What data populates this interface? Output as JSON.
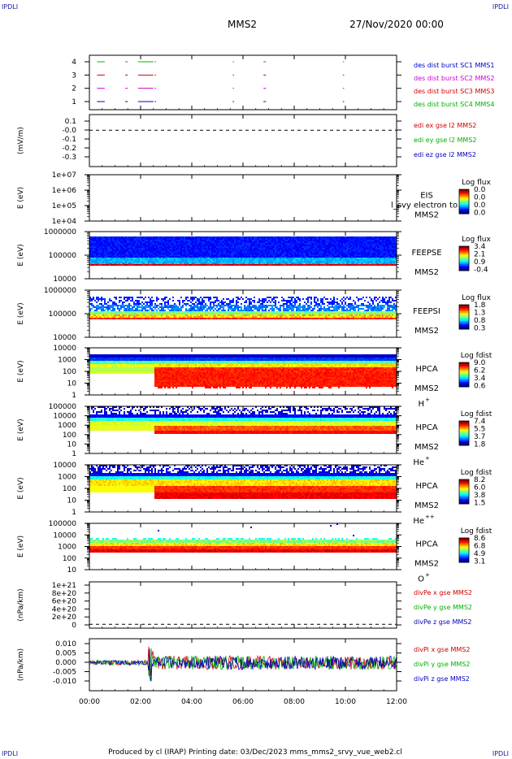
{
  "header": {
    "corner_tl": "IPDLI",
    "corner_tr": "IPDLI",
    "corner_bl": "IPDLI",
    "corner_br": "IPDLI",
    "spacecraft": "MMS2",
    "date": "27/Nov/2020 00:00"
  },
  "footer": "Produced by cl (IRAP)   Printing date: 03/Dec/2023   mms_mms2_srvy_vue_web2.cl",
  "chart_data": {
    "type": "multi-panel time-series / spectrogram",
    "x_ticks": [
      "00:00",
      "02:00",
      "04:00",
      "06:00",
      "08:00",
      "10:00",
      "12:00"
    ],
    "x_range_hours": [
      0,
      12
    ],
    "panels": [
      {
        "id": "burst",
        "kind": "segments",
        "ylabel": "",
        "yticks": [
          "4",
          "3",
          "2",
          "1"
        ],
        "legend": [
          {
            "text": "des dist burst SC1 MMS1",
            "color": "#0000c0"
          },
          {
            "text": "des dist burst SC2 MMS2",
            "color": "#d000d0"
          },
          {
            "text": "des dist burst SC3 MMS3",
            "color": "#d00000"
          },
          {
            "text": "des dist burst SC4 MMS4",
            "color": "#00b000"
          }
        ],
        "rows": [
          {
            "level": 4,
            "color": "#00b000",
            "segments": [
              [
                0.3,
                0.6
              ],
              [
                1.4,
                1.5
              ],
              [
                1.9,
                2.5
              ],
              [
                2.55,
                2.6
              ],
              [
                5.6,
                5.65
              ],
              [
                6.8,
                6.9
              ],
              [
                9.9,
                9.95
              ]
            ]
          },
          {
            "level": 3,
            "color": "#d00000",
            "segments": [
              [
                0.3,
                0.6
              ],
              [
                1.4,
                1.5
              ],
              [
                1.9,
                2.5
              ],
              [
                2.55,
                2.6
              ],
              [
                5.6,
                5.65
              ],
              [
                6.8,
                6.9
              ],
              [
                9.9,
                9.95
              ]
            ]
          },
          {
            "level": 2,
            "color": "#d000d0",
            "segments": [
              [
                0.3,
                0.6
              ],
              [
                1.4,
                1.5
              ],
              [
                1.9,
                2.5
              ],
              [
                2.55,
                2.6
              ],
              [
                5.6,
                5.65
              ],
              [
                6.8,
                6.9
              ],
              [
                9.9,
                9.95
              ]
            ]
          },
          {
            "level": 1,
            "color": "#0000c0",
            "segments": [
              [
                0.3,
                0.6
              ],
              [
                1.4,
                1.5
              ],
              [
                1.9,
                2.5
              ],
              [
                2.55,
                2.6
              ],
              [
                5.6,
                5.65
              ],
              [
                6.8,
                6.9
              ],
              [
                9.9,
                9.95
              ]
            ]
          }
        ]
      },
      {
        "id": "edi",
        "kind": "empty-line",
        "ylabel": "(mV/m)",
        "yticks": [
          "0.1",
          "-0.0",
          "-0.1",
          "-0.2",
          "-0.3"
        ],
        "zero_value": 0.0,
        "yrange": [
          -0.35,
          0.15
        ],
        "legend": [
          {
            "text": "edi ex gse l2 MMS2",
            "color": "#d00000"
          },
          {
            "text": "edi ey gse l2 MMS2",
            "color": "#00b000"
          },
          {
            "text": "edi ez gse l2 MMS2",
            "color": "#0000c0"
          }
        ]
      },
      {
        "id": "eis",
        "kind": "empty-spectrogram",
        "ylabel": "E (eV)",
        "yticks": [
          "1e+07",
          "1e+06",
          "1e+05",
          "1e+04"
        ],
        "instrument": "EIS",
        "spacecraft": "MMS2",
        "overlay_text": "l_svy electron to",
        "cbar_title": "Log flux",
        "cbar_ticks": [
          "0.0",
          "0.0",
          "0.0",
          "0.0"
        ]
      },
      {
        "id": "feepse",
        "kind": "spectrogram",
        "pattern": "feeps_e",
        "ylabel": "E (eV)",
        "yticks": [
          "1000000",
          "100000",
          "10000"
        ],
        "instrument": "FEEPSE",
        "spacecraft": "MMS2",
        "cbar_title": "Log flux",
        "cbar_ticks": [
          "3.4",
          "2.1",
          "0.9",
          "-0.4"
        ]
      },
      {
        "id": "feepsi",
        "kind": "spectrogram",
        "pattern": "feeps_i",
        "ylabel": "E (eV)",
        "yticks": [
          "1000000",
          "100000",
          "10000"
        ],
        "instrument": "FEEPSI",
        "spacecraft": "MMS2",
        "cbar_title": "Log flux",
        "cbar_ticks": [
          "1.8",
          "1.3",
          "0.8",
          "0.3"
        ]
      },
      {
        "id": "hpca_h",
        "kind": "spectrogram",
        "pattern": "hpca_h",
        "ylabel": "E (eV)",
        "yticks": [
          "10000",
          "1000",
          "100",
          "10",
          "1"
        ],
        "instrument": "HPCA",
        "spacecraft": "MMS2",
        "species": "H",
        "charge": "+",
        "cbar_title": "Log fdist",
        "cbar_ticks": [
          "9.0",
          "6.2",
          "3.4",
          "0.6"
        ]
      },
      {
        "id": "hpca_he1",
        "kind": "spectrogram",
        "pattern": "hpca_he1",
        "ylabel": "E (eV)",
        "yticks": [
          "100000",
          "10000",
          "1000",
          "100",
          "10",
          "1"
        ],
        "instrument": "HPCA",
        "spacecraft": "MMS2",
        "species": "He",
        "charge": "+",
        "cbar_title": "Log fdist",
        "cbar_ticks": [
          "7.4",
          "5.5",
          "3.7",
          "1.8"
        ]
      },
      {
        "id": "hpca_he2",
        "kind": "spectrogram",
        "pattern": "hpca_he2",
        "ylabel": "E (eV)",
        "yticks": [
          "10000",
          "1000",
          "100",
          "10",
          "1"
        ],
        "instrument": "HPCA",
        "spacecraft": "MMS2",
        "species": "He",
        "charge": "++",
        "cbar_title": "Log fdist",
        "cbar_ticks": [
          "8.2",
          "6.0",
          "3.8",
          "1.5"
        ]
      },
      {
        "id": "hpca_o",
        "kind": "spectrogram",
        "pattern": "hpca_o",
        "ylabel": "E (eV)",
        "yticks": [
          "100000",
          "10000",
          "1000",
          "100",
          "10"
        ],
        "instrument": "HPCA",
        "spacecraft": "MMS2",
        "species": "O",
        "charge": "+",
        "cbar_title": "Log fdist",
        "cbar_ticks": [
          "8.6",
          "6.8",
          "4.9",
          "3.1"
        ]
      },
      {
        "id": "divpe",
        "kind": "empty-line",
        "ylabel": "(nPa/km)",
        "yticks": [
          "1e+21",
          "8e+20",
          "6e+20",
          "4e+20",
          "2e+20",
          "0"
        ],
        "zero_value": 0,
        "yrange": [
          -1e+20,
          1.1e+21
        ],
        "legend": [
          {
            "text": "divPe x gse MMS2",
            "color": "#d00000"
          },
          {
            "text": "divPe y gse MMS2",
            "color": "#00b000"
          },
          {
            "text": "divPe z gse MMS2",
            "color": "#0000c0"
          }
        ]
      },
      {
        "id": "divpi",
        "kind": "noise-line",
        "ylabel": "(nPa/km)",
        "yticks": [
          "0.010",
          "0.005",
          "0.000",
          "-0.005",
          "-0.010"
        ],
        "yrange": [
          -0.014,
          0.012
        ],
        "legend": [
          {
            "text": "divPi x gse MMS2",
            "color": "#d00000"
          },
          {
            "text": "divPi y gse MMS2",
            "color": "#00b000"
          },
          {
            "text": "divPi z gse MMS2",
            "color": "#0000c0"
          }
        ]
      }
    ]
  }
}
